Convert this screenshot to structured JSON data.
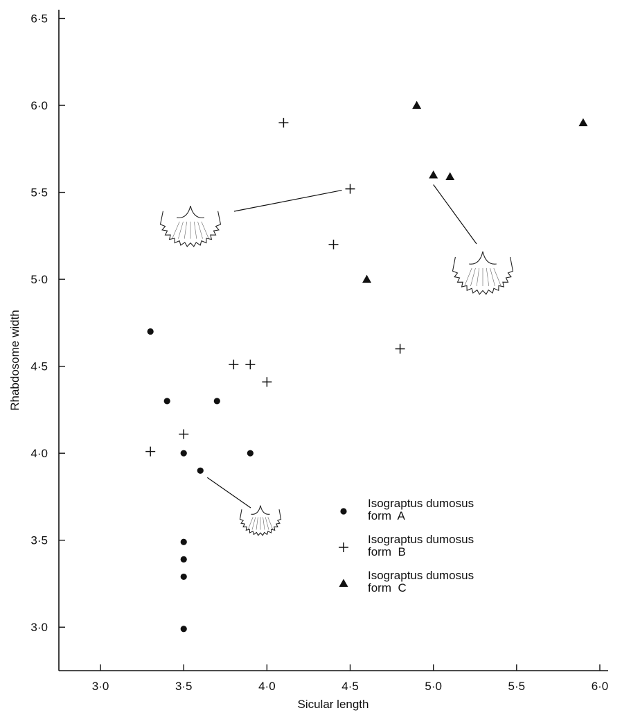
{
  "chart_data": {
    "type": "scatter",
    "xlabel": "Sicular length",
    "ylabel": "Rhabdosome width",
    "xlim": [
      2.75,
      6.05
    ],
    "ylim": [
      2.75,
      6.55
    ],
    "x_ticks": [
      3.0,
      3.5,
      4.0,
      4.5,
      5.0,
      5.5,
      6.0
    ],
    "y_ticks": [
      3.0,
      3.5,
      4.0,
      4.5,
      5.0,
      5.5,
      6.0,
      6.5
    ],
    "x_tick_labels": [
      "3·0",
      "3·5",
      "4·0",
      "4·5",
      "5·0",
      "5·5",
      "6·0"
    ],
    "y_tick_labels": [
      "3·0",
      "3·5",
      "4·0",
      "4·5",
      "5·0",
      "5·5",
      "6·0",
      "6·5"
    ],
    "grid": false,
    "legend_position": "lower-right",
    "series": [
      {
        "name": "Isograptus dumosus\nform  A",
        "marker": "dot",
        "points": [
          [
            3.3,
            4.7
          ],
          [
            3.4,
            4.3
          ],
          [
            3.7,
            4.3
          ],
          [
            3.5,
            4.0
          ],
          [
            3.9,
            4.0
          ],
          [
            3.6,
            3.9
          ],
          [
            3.5,
            3.49
          ],
          [
            3.5,
            3.39
          ],
          [
            3.5,
            3.29
          ],
          [
            3.5,
            2.99
          ]
        ]
      },
      {
        "name": "Isograptus dumosus\nform  B",
        "marker": "plus",
        "points": [
          [
            4.1,
            5.9
          ],
          [
            4.5,
            5.52
          ],
          [
            4.4,
            5.2
          ],
          [
            4.8,
            4.6
          ],
          [
            3.8,
            4.51
          ],
          [
            3.9,
            4.51
          ],
          [
            4.0,
            4.41
          ],
          [
            3.5,
            4.11
          ],
          [
            3.3,
            4.01
          ]
        ]
      },
      {
        "name": "Isograptus dumosus\nform  C",
        "marker": "triangle",
        "points": [
          [
            4.9,
            6.0
          ],
          [
            5.9,
            5.9
          ],
          [
            5.0,
            5.6
          ],
          [
            5.1,
            5.59
          ],
          [
            4.6,
            5.0
          ]
        ]
      }
    ],
    "annotations": [
      {
        "kind": "rhabdosome-sketch",
        "series": "B"
      },
      {
        "kind": "rhabdosome-sketch",
        "series": "C"
      },
      {
        "kind": "rhabdosome-sketch",
        "series": "A"
      }
    ]
  }
}
